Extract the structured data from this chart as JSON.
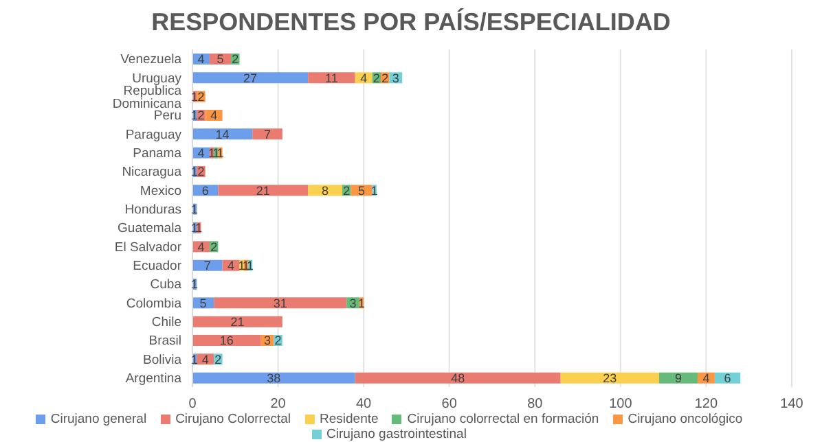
{
  "chart_data": {
    "type": "bar",
    "orientation": "horizontal",
    "stacked": true,
    "title": "RESPONDENTES POR PAÍS/ESPECIALIDAD",
    "categories": [
      "Venezuela",
      "Uruguay",
      "Republica Dominicana",
      "Peru",
      "Paraguay",
      "Panama",
      "Nicaragua",
      "Mexico",
      "Honduras",
      "Guatemala",
      "El Salvador",
      "Ecuador",
      "Cuba",
      "Colombia",
      "Chile",
      "Brasil",
      "Bolivia",
      "Argentina"
    ],
    "series": [
      {
        "name": "Cirujano general",
        "color": "#6d9eeb",
        "values": [
          4,
          27,
          null,
          1,
          14,
          4,
          1,
          6,
          1,
          1,
          null,
          7,
          1,
          5,
          null,
          null,
          1,
          38
        ]
      },
      {
        "name": "Cirujano Colorrectal",
        "color": "#ea7b71",
        "values": [
          5,
          11,
          1,
          2,
          7,
          1,
          2,
          21,
          null,
          1,
          4,
          4,
          null,
          31,
          21,
          16,
          4,
          48
        ]
      },
      {
        "name": "Residente",
        "color": "#fbcf4f",
        "values": [
          null,
          4,
          null,
          null,
          null,
          null,
          null,
          8,
          null,
          null,
          null,
          1,
          null,
          null,
          null,
          null,
          null,
          23
        ]
      },
      {
        "name": "Cirujano colorrectal en formación",
        "color": "#66bb7a",
        "values": [
          2,
          2,
          null,
          null,
          null,
          1,
          null,
          2,
          null,
          null,
          2,
          null,
          null,
          3,
          null,
          null,
          null,
          9
        ]
      },
      {
        "name": "Cirujano oncológico",
        "color": "#fb9644",
        "values": [
          null,
          2,
          2,
          4,
          null,
          1,
          null,
          5,
          null,
          null,
          null,
          1,
          null,
          1,
          null,
          3,
          null,
          4
        ]
      },
      {
        "name": "Cirujano gastrointestinal",
        "color": "#73d0d6",
        "values": [
          null,
          3,
          null,
          null,
          null,
          null,
          null,
          1,
          null,
          null,
          null,
          1,
          null,
          null,
          null,
          2,
          2,
          6
        ]
      }
    ],
    "xlim": [
      0,
      140
    ],
    "xticks": [
      0,
      20,
      40,
      60,
      80,
      100,
      120,
      140
    ],
    "grid": "x",
    "legend": "bottom",
    "data_labels": true
  }
}
